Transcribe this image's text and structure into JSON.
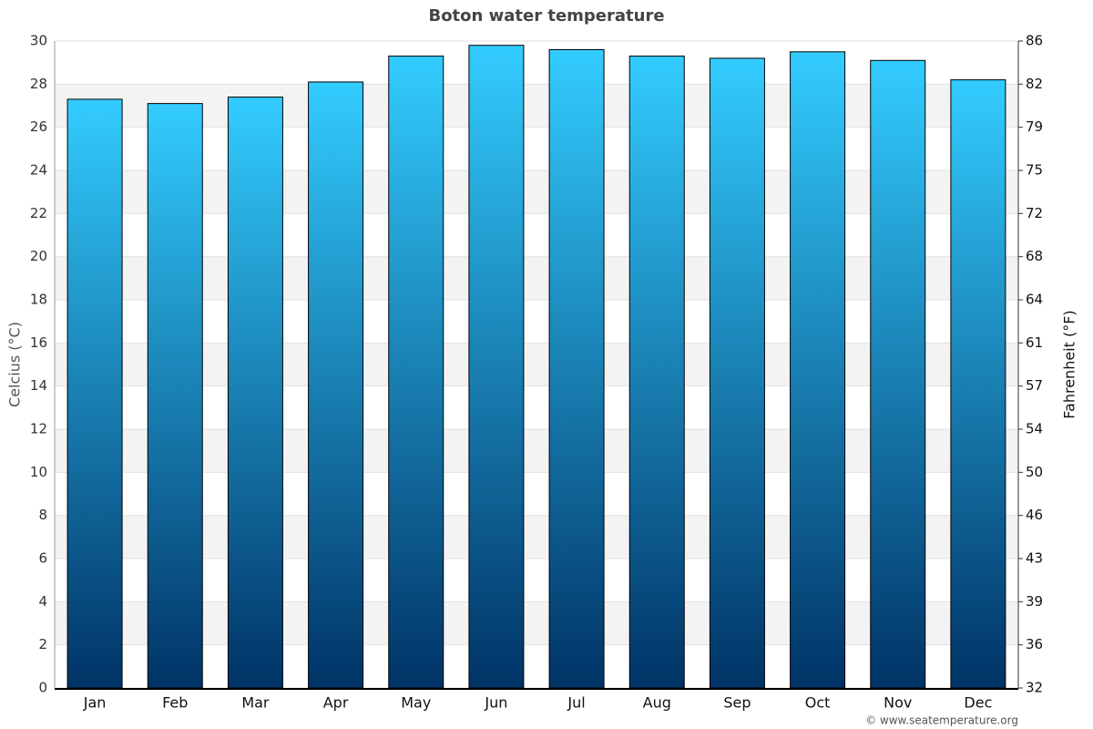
{
  "chart_data": {
    "type": "bar",
    "title": "Boton water temperature",
    "categories": [
      "Jan",
      "Feb",
      "Mar",
      "Apr",
      "May",
      "Jun",
      "Jul",
      "Aug",
      "Sep",
      "Oct",
      "Nov",
      "Dec"
    ],
    "values": [
      27.3,
      27.1,
      27.4,
      28.1,
      29.3,
      29.8,
      29.6,
      29.3,
      29.2,
      29.5,
      29.1,
      28.2
    ],
    "color": [
      "#33ccff",
      "#003366"
    ],
    "ylim": [
      0,
      30
    ],
    "yticks": [
      0,
      2,
      4,
      6,
      8,
      10,
      12,
      14,
      16,
      18,
      20,
      22,
      24,
      26,
      28,
      30
    ],
    "y2lim": [
      32,
      86
    ],
    "y2ticks": [
      32,
      {
        "value": 35.6,
        "label": "36"
      },
      {
        "value": 39.2,
        "label": "39"
      },
      {
        "value": 42.8,
        "label": "43"
      },
      {
        "value": 46.4,
        "label": "46"
      },
      50,
      {
        "value": 53.6,
        "label": "54"
      },
      {
        "value": 57.2,
        "label": "57"
      },
      {
        "value": 60.8,
        "label": "61"
      },
      {
        "value": 64.4,
        "label": "64"
      },
      68,
      {
        "value": 71.6,
        "label": "72"
      },
      {
        "value": 75.2,
        "label": "75"
      },
      {
        "value": 78.8,
        "label": "79"
      },
      {
        "value": 82.4,
        "label": "82"
      },
      86
    ],
    "ylabel": "Celcius (°C)",
    "y2label": "Fahrenheit (°F)",
    "grid": true,
    "credit": "© www.seatemperature.org"
  }
}
